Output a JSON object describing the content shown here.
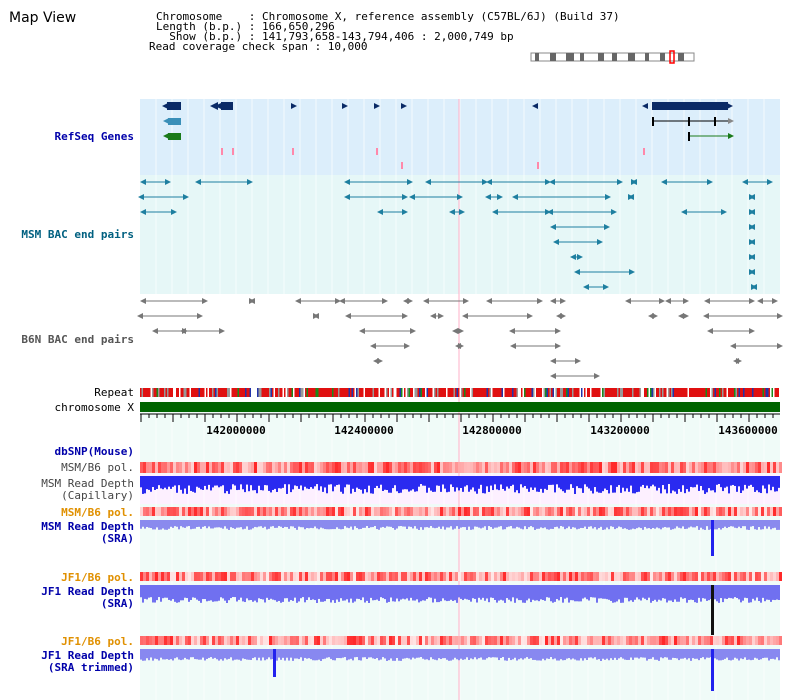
{
  "title": "Map View",
  "info": {
    "chromosome": "Chromosome    : Chromosome X, reference assembly (C57BL/6J) (Build 37)",
    "length": "Length (b.p.) : 166,650,296",
    "show": "  Show (b.p.) : 141,793,658-143,794,406 : 2,000,749 bp",
    "coverage": "Read coverage check span : 10,000"
  },
  "tracks": {
    "refseq": "RefSeq Genes",
    "msm_bac": "MSM BAC end pairs",
    "b6n_bac": "B6N BAC end pairs",
    "repeat": "Repeat",
    "chromosome": "chromosome X",
    "dbsnp": "dbSNP(Mouse)",
    "msm_pol": "MSM/B6 pol.",
    "msm_depth_cap": "MSM Read Depth\n(Capillary)",
    "msm_pol2": "MSM/B6 pol.",
    "msm_depth_sra": "MSM Read Depth\n(SRA)",
    "jf1_pol": "JF1/B6 pol.",
    "jf1_depth_sra": "JF1 Read Depth\n(SRA)",
    "jf1_pol2": "JF1/B6 pol.",
    "jf1_depth_trim": "JF1 Read Depth\n(SRA trimmed)"
  },
  "axis": {
    "ticks": [
      "142000000",
      "142400000",
      "142800000",
      "143200000",
      "143600000"
    ]
  },
  "colors": {
    "refseq_bg": "#dceefb",
    "msm_bg": "#e6f7f7",
    "lane_bg": "#f0fbf8",
    "depth_bg": "#fdf0ff",
    "gene_dark": "#0a2a66",
    "gene_blue": "#3a8fb8",
    "gene_green": "#1a7a1a",
    "msm_feature": "#1e7fa0",
    "b6n_feature": "#777777",
    "chromosome": "#006400",
    "pol_red": "#ff2a2a",
    "depth_blue": "#3030ff",
    "label_blue": "#0000aa",
    "label_teal": "#006080",
    "label_orange": "#e09000"
  }
}
